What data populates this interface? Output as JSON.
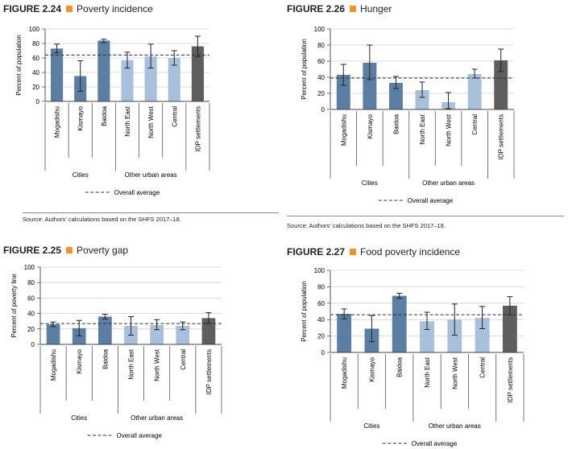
{
  "colors": {
    "accent": "#f7941d",
    "cities": "#5b7ea3",
    "other_urban": "#a9c0dc",
    "idp": "#5e5e5e",
    "average_line": "#333333"
  },
  "source_text": "Source: Authors’ calculations based on the SHFS 2017–18.",
  "chart_data": [
    {
      "type": "bar",
      "figure_number": "FIGURE 2.24",
      "title": "Poverty incidence",
      "ylabel": "Percent of population",
      "ylim": [
        0,
        100
      ],
      "yticks": [
        "0",
        "20",
        "40",
        "60",
        "80",
        "100"
      ],
      "categories": [
        "Mogadishu",
        "Kismayo",
        "Baidoa",
        "North East",
        "North West",
        "Central",
        "IDP settlements"
      ],
      "groups": [
        "cities",
        "cities",
        "cities",
        "other_urban",
        "other_urban",
        "other_urban",
        "idp"
      ],
      "values": [
        73,
        35,
        84,
        57,
        62,
        60,
        76
      ],
      "error_low": [
        67,
        14,
        81,
        46,
        46,
        50,
        62
      ],
      "error_high": [
        79,
        56,
        86,
        68,
        79,
        70,
        90
      ],
      "average": 64,
      "group_labels": [
        "Cities",
        "Other urban areas"
      ],
      "legend": "Overall average"
    },
    {
      "type": "bar",
      "figure_number": "FIGURE 2.26",
      "title": "Hunger",
      "ylabel": "Percent of population",
      "ylim": [
        0,
        100
      ],
      "yticks": [
        "0",
        "20",
        "40",
        "60",
        "80",
        "100"
      ],
      "categories": [
        "Mogadishu",
        "Kismayo",
        "Baidoa",
        "North East",
        "North West",
        "Central",
        "IDP settlements"
      ],
      "groups": [
        "cities",
        "cities",
        "cities",
        "other_urban",
        "other_urban",
        "other_urban",
        "idp"
      ],
      "values": [
        43,
        58,
        33,
        24,
        9,
        44,
        61
      ],
      "error_low": [
        30,
        37,
        26,
        15,
        1,
        39,
        47
      ],
      "error_high": [
        56,
        80,
        41,
        34,
        21,
        50,
        75
      ],
      "average": 39,
      "group_labels": [
        "Cities",
        "Other urban areas"
      ],
      "legend": "Overall average"
    },
    {
      "type": "bar",
      "figure_number": "FIGURE 2.25",
      "title": "Poverty gap",
      "ylabel": "Percent of poverty line",
      "ylim": [
        0,
        100
      ],
      "yticks": [
        "0",
        "20",
        "40",
        "60",
        "80",
        "100"
      ],
      "categories": [
        "Mogadishu",
        "Kismayo",
        "Baidoa",
        "North East",
        "North West",
        "Central",
        "IDP settlements"
      ],
      "groups": [
        "cities",
        "cities",
        "cities",
        "other_urban",
        "other_urban",
        "other_urban",
        "idp"
      ],
      "values": [
        26,
        21,
        36,
        24,
        25,
        24,
        34
      ],
      "error_low": [
        23,
        11,
        33,
        12,
        19,
        19,
        27
      ],
      "error_high": [
        29,
        31,
        39,
        36,
        32,
        29,
        41
      ],
      "average": 27,
      "group_labels": [
        "Cities",
        "Other urban areas"
      ],
      "legend": "Overall average"
    },
    {
      "type": "bar",
      "figure_number": "FIGURE 2.27",
      "title": "Food poverty incidence",
      "ylabel": "Percent of population",
      "ylim": [
        0,
        100
      ],
      "yticks": [
        "0",
        "20",
        "40",
        "60",
        "80",
        "100"
      ],
      "categories": [
        "Mogadishu",
        "Kismayo",
        "Baidoa",
        "North East",
        "North West",
        "Central",
        "IDP settlements"
      ],
      "groups": [
        "cities",
        "cities",
        "cities",
        "other_urban",
        "other_urban",
        "other_urban",
        "idp"
      ],
      "values": [
        47,
        29,
        69,
        38,
        40,
        42,
        57
      ],
      "error_low": [
        41,
        13,
        66,
        28,
        21,
        29,
        46
      ],
      "error_high": [
        53,
        45,
        72,
        49,
        59,
        56,
        68
      ],
      "average": 46,
      "group_labels": [
        "Cities",
        "Other urban areas"
      ],
      "legend": "Overall average"
    }
  ]
}
